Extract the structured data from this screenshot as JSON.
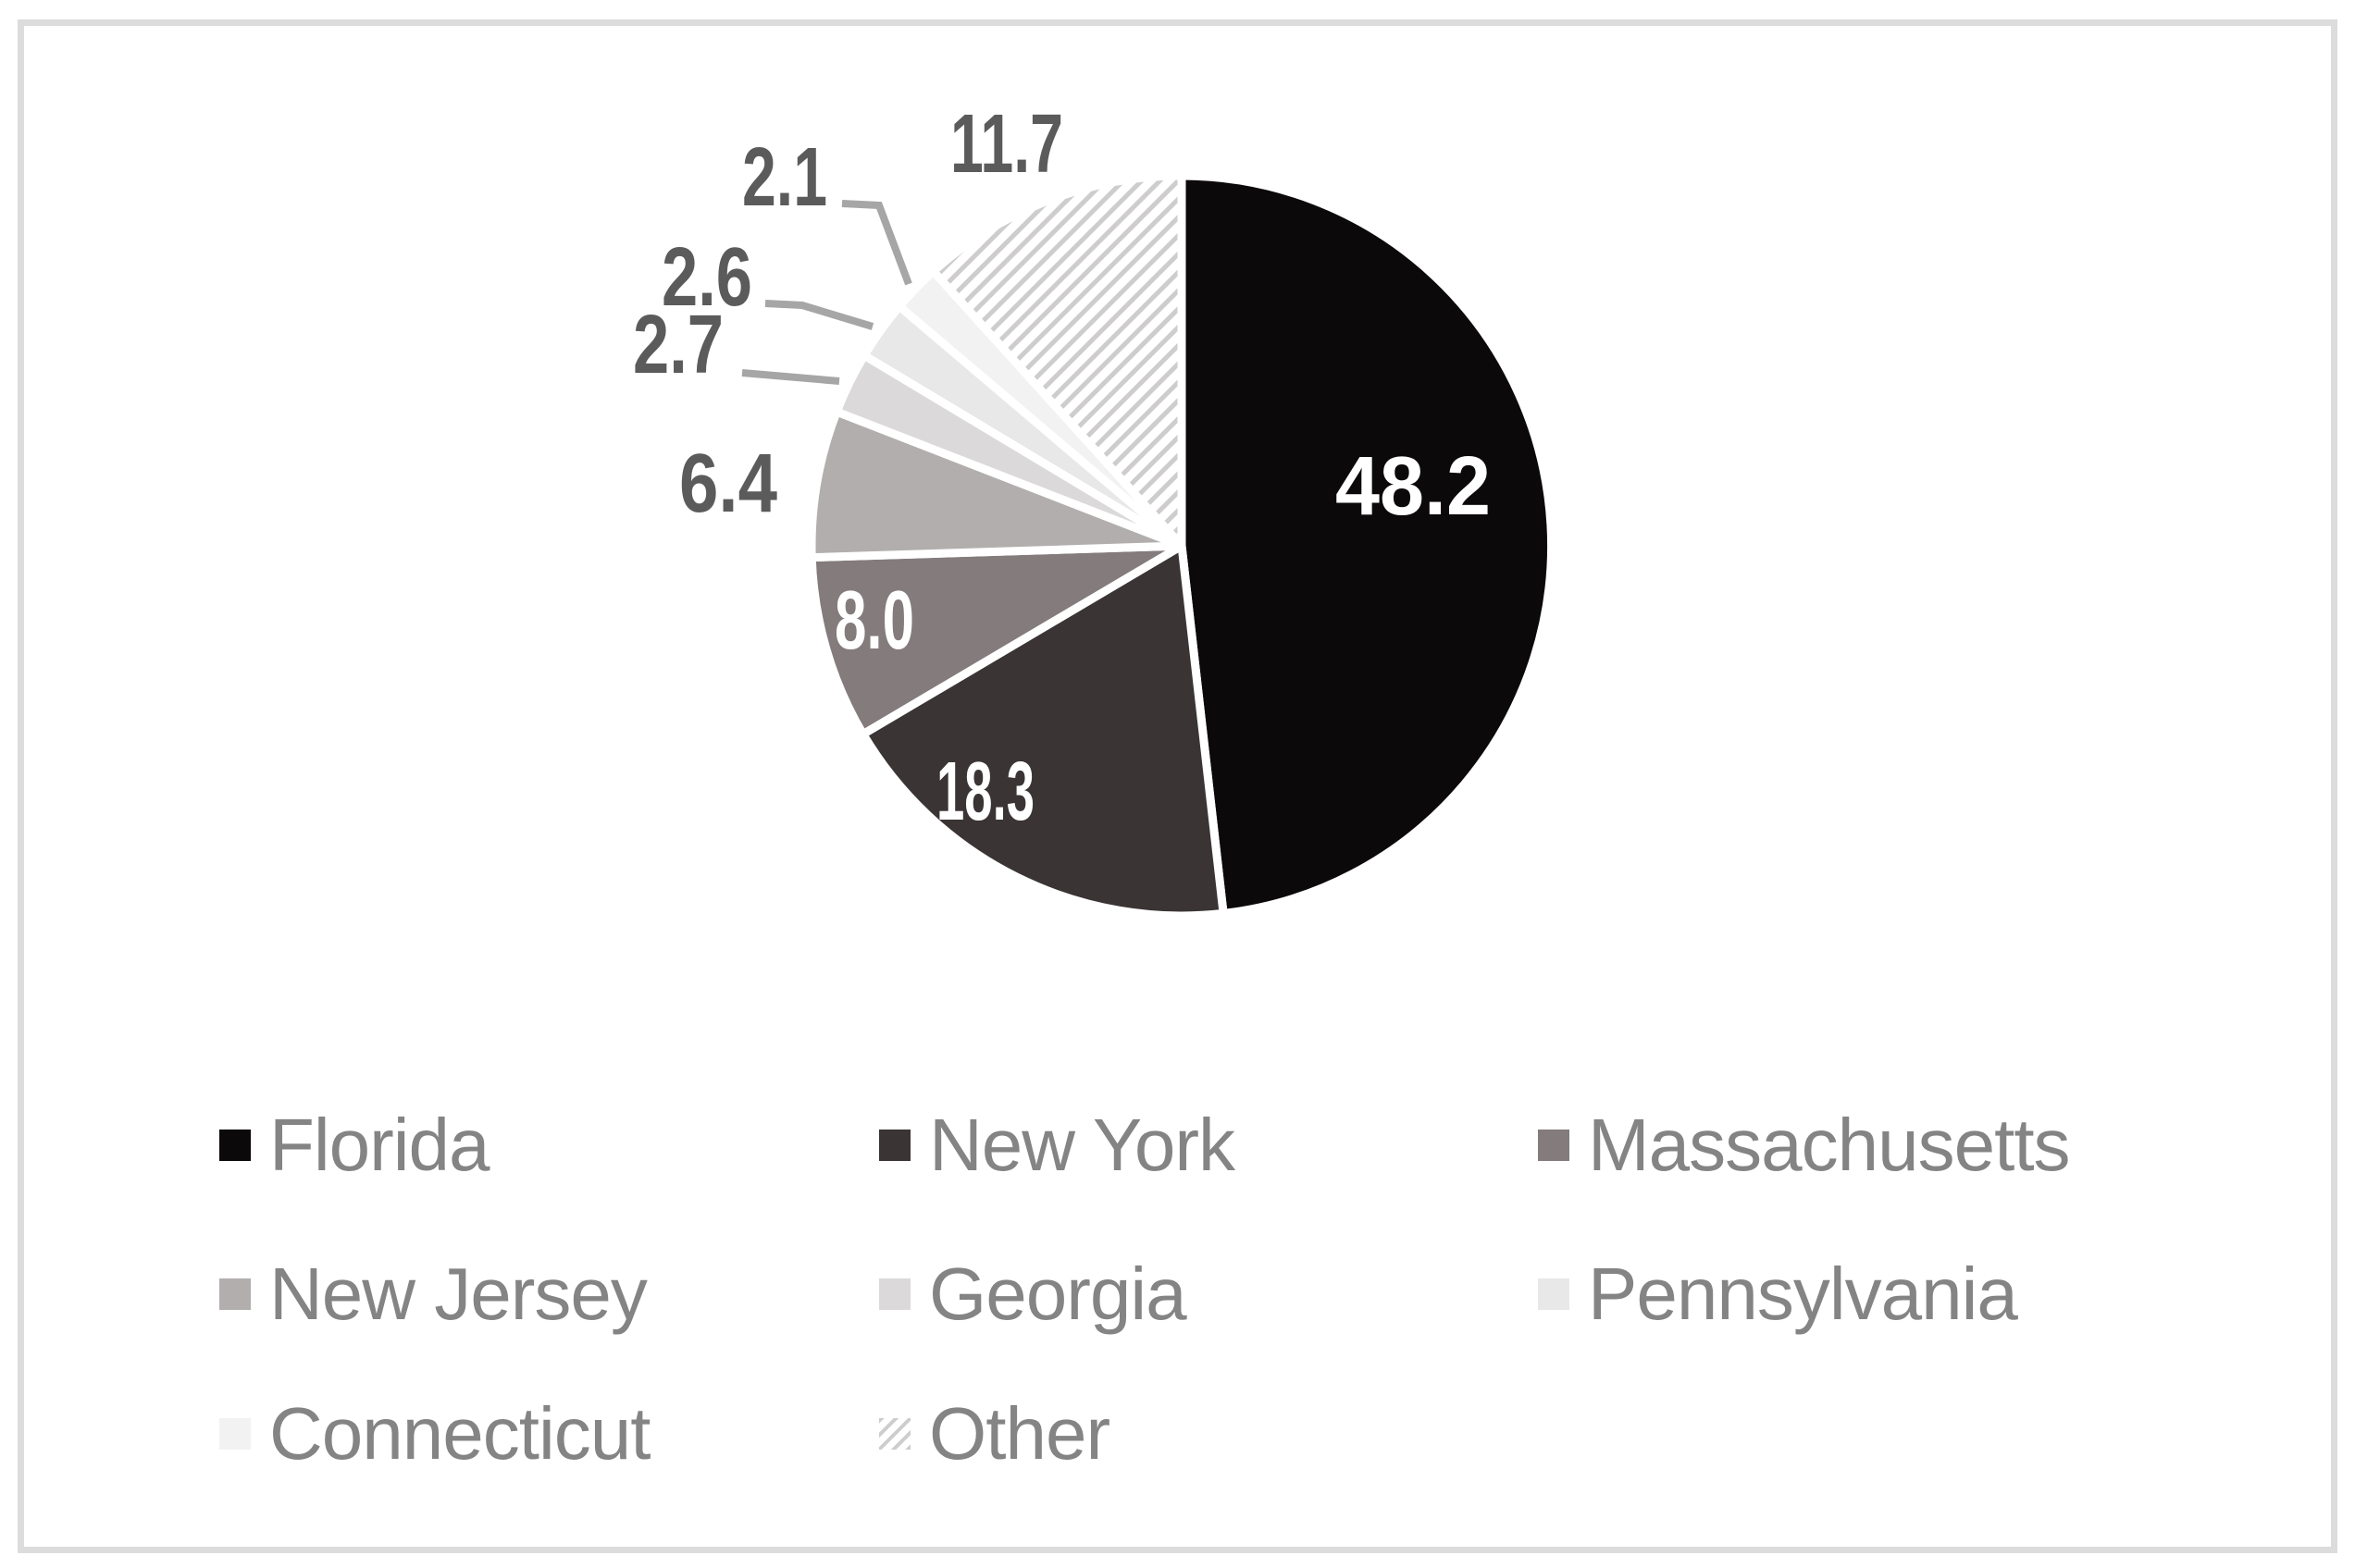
{
  "chart_data": {
    "type": "pie",
    "title": "",
    "unit": "percent",
    "total": 100,
    "start_angle_deg": 0,
    "direction": "clockwise",
    "grid": false,
    "legend_position": "bottom",
    "legend_columns": 3,
    "categories": [
      "Florida",
      "New York",
      "Massachusetts",
      "New Jersey",
      "Georgia",
      "Pennsylvania",
      "Connecticut",
      "Other"
    ],
    "values": [
      48.2,
      18.3,
      8.0,
      6.4,
      2.7,
      2.6,
      2.1,
      11.7
    ],
    "slices": [
      {
        "label": "Florida",
        "value": 48.2,
        "display": "48.2",
        "color": "#0c090a",
        "hatch": false,
        "label_placement": "inside",
        "leader_line": false
      },
      {
        "label": "New York",
        "value": 18.3,
        "display": "18.3",
        "color": "#3a3435",
        "hatch": false,
        "label_placement": "inside",
        "leader_line": false
      },
      {
        "label": "Massachusetts",
        "value": 8.0,
        "display": "8.0",
        "color": "#837b7c",
        "hatch": false,
        "label_placement": "inside",
        "leader_line": false
      },
      {
        "label": "New Jersey",
        "value": 6.4,
        "display": "6.4",
        "color": "#b3aeae",
        "hatch": false,
        "label_placement": "outside",
        "leader_line": false
      },
      {
        "label": "Georgia",
        "value": 2.7,
        "display": "2.7",
        "color": "#dbd9d9",
        "hatch": false,
        "label_placement": "outside",
        "leader_line": true
      },
      {
        "label": "Pennsylvania",
        "value": 2.6,
        "display": "2.6",
        "color": "#e9e8e8",
        "hatch": false,
        "label_placement": "outside",
        "leader_line": true
      },
      {
        "label": "Connecticut",
        "value": 2.1,
        "display": "2.1",
        "color": "#f3f2f2",
        "hatch": false,
        "label_placement": "outside",
        "leader_line": true
      },
      {
        "label": "Other",
        "value": 11.7,
        "display": "11.7",
        "color": "#ffffff",
        "hatch": true,
        "label_placement": "outside",
        "leader_line": false
      }
    ],
    "colors": {
      "slice_border": "#ffffff",
      "hatch_stripe": "#cecccc",
      "label_inside": "#ffffff",
      "label_outside": "#5b5b5b",
      "leader_line": "#a6a6a6",
      "legend_text": "#848484",
      "frame_border": "#dcdcdc"
    }
  }
}
